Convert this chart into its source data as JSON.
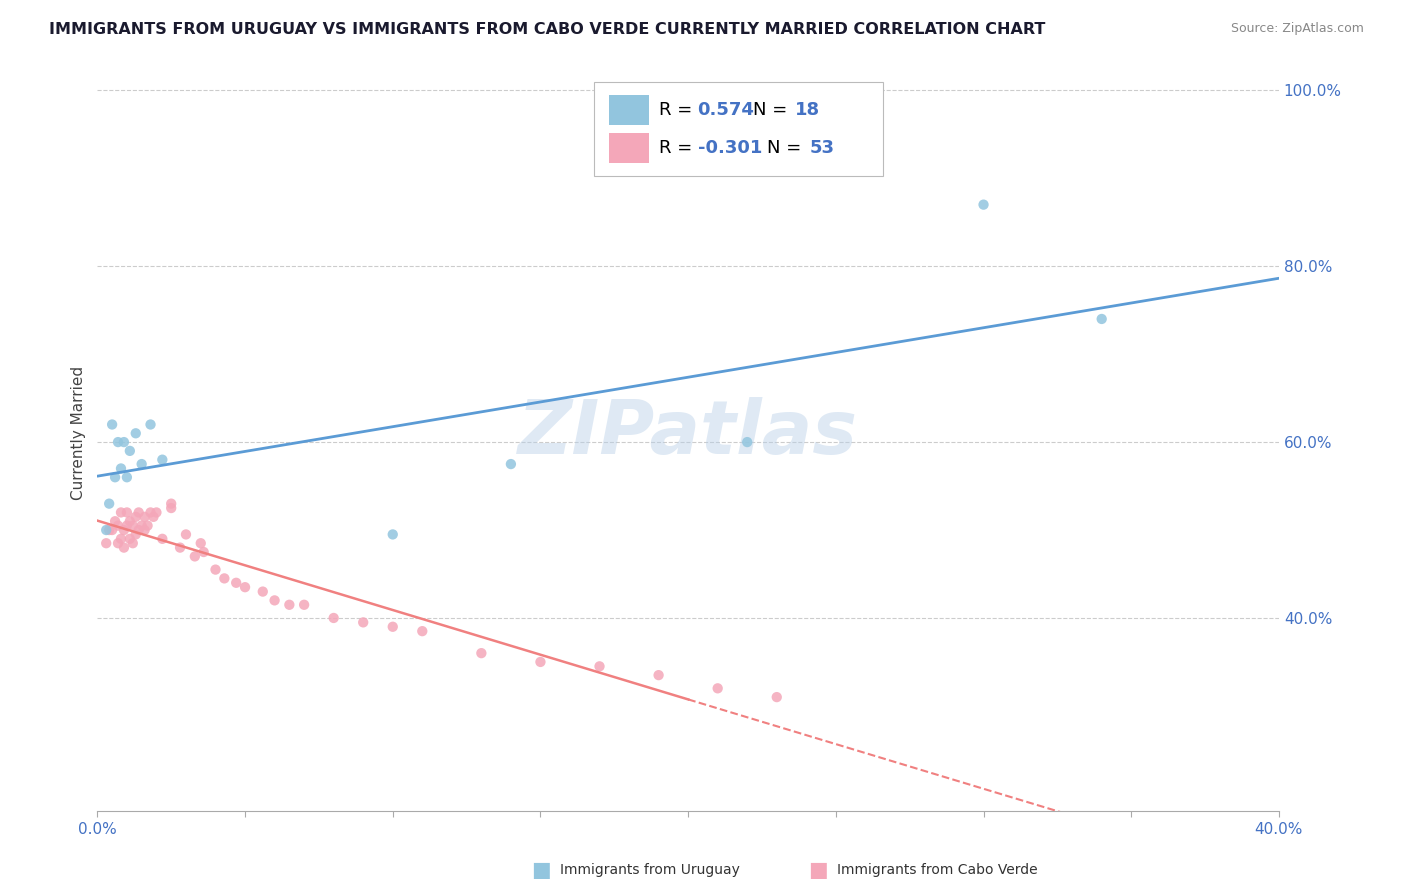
{
  "title": "IMMIGRANTS FROM URUGUAY VS IMMIGRANTS FROM CABO VERDE CURRENTLY MARRIED CORRELATION CHART",
  "source_text": "Source: ZipAtlas.com",
  "ylabel": "Currently Married",
  "xlim": [
    0.0,
    0.4
  ],
  "ylim": [
    0.18,
    1.04
  ],
  "xticks": [
    0.0,
    0.05,
    0.1,
    0.15,
    0.2,
    0.25,
    0.3,
    0.35,
    0.4
  ],
  "xticklabels": [
    "0.0%",
    "",
    "",
    "",
    "",
    "",
    "",
    "",
    "40.0%"
  ],
  "ytick_positions": [
    0.4,
    0.6,
    0.8,
    1.0
  ],
  "ytick_labels": [
    "40.0%",
    "60.0%",
    "80.0%",
    "100.0%"
  ],
  "watermark": "ZIPatlas",
  "legend_R1": "0.574",
  "legend_N1": "18",
  "legend_R2": "-0.301",
  "legend_N2": "53",
  "color_uruguay": "#92c5de",
  "color_cabo": "#f4a7b9",
  "line_color_uruguay": "#5b9bd5",
  "line_color_cabo": "#f08080",
  "background_color": "#ffffff",
  "grid_color": "#cccccc",
  "uruguay_x": [
    0.003,
    0.004,
    0.005,
    0.006,
    0.007,
    0.008,
    0.009,
    0.01,
    0.011,
    0.013,
    0.015,
    0.018,
    0.022,
    0.1,
    0.14,
    0.22,
    0.3,
    0.34
  ],
  "uruguay_y": [
    0.5,
    0.53,
    0.62,
    0.56,
    0.6,
    0.57,
    0.6,
    0.56,
    0.59,
    0.61,
    0.575,
    0.62,
    0.58,
    0.495,
    0.575,
    0.6,
    0.87,
    0.74
  ],
  "cabo_x": [
    0.003,
    0.004,
    0.005,
    0.006,
    0.007,
    0.007,
    0.008,
    0.008,
    0.009,
    0.009,
    0.01,
    0.01,
    0.011,
    0.011,
    0.012,
    0.012,
    0.013,
    0.013,
    0.014,
    0.014,
    0.015,
    0.016,
    0.016,
    0.017,
    0.018,
    0.019,
    0.02,
    0.022,
    0.025,
    0.028,
    0.03,
    0.033,
    0.036,
    0.04,
    0.043,
    0.047,
    0.05,
    0.056,
    0.06,
    0.065,
    0.07,
    0.08,
    0.09,
    0.1,
    0.11,
    0.13,
    0.15,
    0.17,
    0.19,
    0.21,
    0.23,
    0.025,
    0.035
  ],
  "cabo_y": [
    0.485,
    0.5,
    0.5,
    0.51,
    0.485,
    0.505,
    0.49,
    0.52,
    0.5,
    0.48,
    0.505,
    0.52,
    0.49,
    0.51,
    0.505,
    0.485,
    0.515,
    0.495,
    0.5,
    0.52,
    0.505,
    0.515,
    0.5,
    0.505,
    0.52,
    0.515,
    0.52,
    0.49,
    0.525,
    0.48,
    0.495,
    0.47,
    0.475,
    0.455,
    0.445,
    0.44,
    0.435,
    0.43,
    0.42,
    0.415,
    0.415,
    0.4,
    0.395,
    0.39,
    0.385,
    0.36,
    0.35,
    0.345,
    0.335,
    0.32,
    0.31,
    0.53,
    0.485
  ],
  "legend_fontsize": 13,
  "title_fontsize": 11.5,
  "axis_label_fontsize": 11,
  "tick_fontsize": 11
}
